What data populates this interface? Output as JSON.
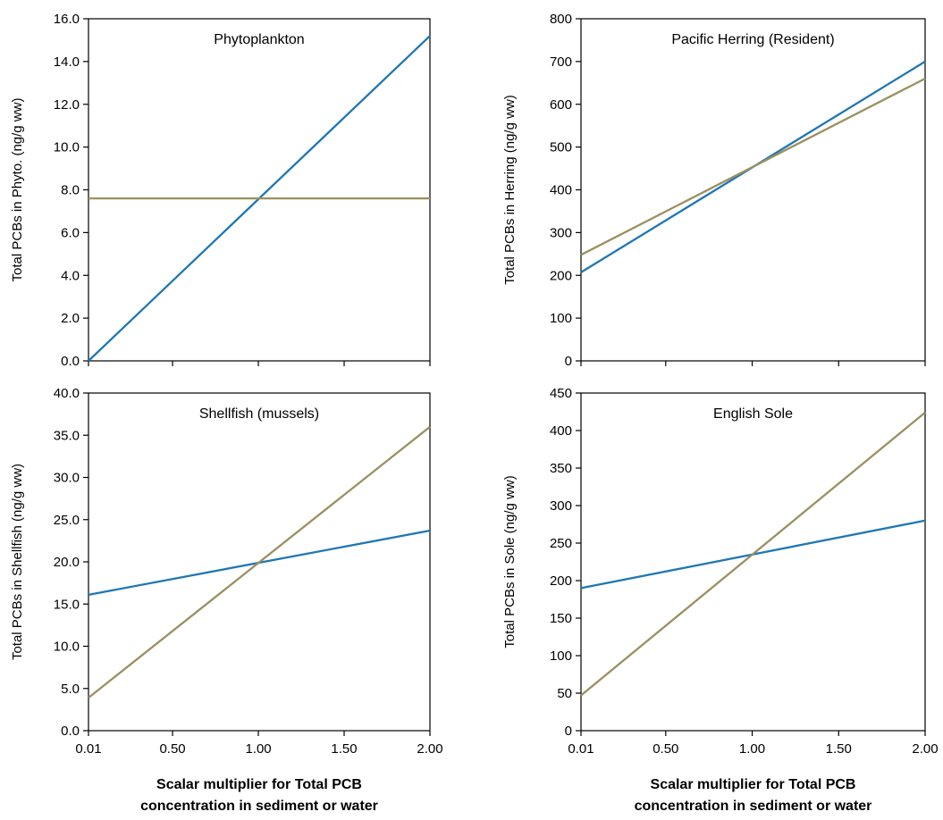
{
  "chart_data": [
    {
      "type": "line",
      "title": "Phytoplankton",
      "ylabel": "Total PCBs in Phyto. (ng/g ww)",
      "xlabel": "",
      "xlim": [
        0.01,
        2.0
      ],
      "ylim": [
        0,
        16
      ],
      "yticks": [
        0,
        2,
        4,
        6,
        8,
        10,
        12,
        14,
        16
      ],
      "ytick_labels": [
        "0.0",
        "2.0",
        "4.0",
        "6.0",
        "8.0",
        "10.0",
        "12.0",
        "14.0",
        "16.0"
      ],
      "xticks": [
        0.01,
        0.5,
        1.0,
        1.5,
        2.0
      ],
      "xtick_labels": [],
      "colors": [
        "#1f77b4",
        "#9b9060"
      ],
      "series": [
        {
          "x": [
            0.01,
            2.0
          ],
          "y": [
            0.0,
            15.2
          ]
        },
        {
          "x": [
            0.01,
            2.0
          ],
          "y": [
            7.6,
            7.6
          ]
        }
      ]
    },
    {
      "type": "line",
      "title": "Pacific Herring (Resident)",
      "ylabel": "Total PCBs in Herring (ng/g ww)",
      "xlabel": "",
      "xlim": [
        0.01,
        2.0
      ],
      "ylim": [
        0,
        800
      ],
      "yticks": [
        0,
        100,
        200,
        300,
        400,
        500,
        600,
        700,
        800
      ],
      "ytick_labels": [
        "0",
        "100",
        "200",
        "300",
        "400",
        "500",
        "600",
        "700",
        "800"
      ],
      "xticks": [
        0.01,
        0.5,
        1.0,
        1.5,
        2.0
      ],
      "xtick_labels": [],
      "colors": [
        "#1f77b4",
        "#9b9060"
      ],
      "series": [
        {
          "x": [
            0.01,
            2.0
          ],
          "y": [
            207,
            700
          ]
        },
        {
          "x": [
            0.01,
            2.0
          ],
          "y": [
            248,
            660
          ]
        }
      ]
    },
    {
      "type": "line",
      "title": "Shellfish (mussels)",
      "ylabel": "Total PCBs in Shellfish (ng/g ww)",
      "xlabel": "Scalar multiplier for Total PCB concentration in sediment or water",
      "xlim": [
        0.01,
        2.0
      ],
      "ylim": [
        0,
        40
      ],
      "yticks": [
        0,
        5,
        10,
        15,
        20,
        25,
        30,
        35,
        40
      ],
      "ytick_labels": [
        "0.0",
        "5.0",
        "10.0",
        "15.0",
        "20.0",
        "25.0",
        "30.0",
        "35.0",
        "40.0"
      ],
      "xticks": [
        0.01,
        0.5,
        1.0,
        1.5,
        2.0
      ],
      "xtick_labels": [
        "0.01",
        "0.50",
        "1.00",
        "1.50",
        "2.00"
      ],
      "colors": [
        "#1f77b4",
        "#9b9060"
      ],
      "series": [
        {
          "x": [
            0.01,
            2.0
          ],
          "y": [
            16.1,
            23.7
          ]
        },
        {
          "x": [
            0.01,
            2.0
          ],
          "y": [
            3.9,
            36.0
          ]
        }
      ]
    },
    {
      "type": "line",
      "title": "English Sole",
      "ylabel": "Total PCBs in Sole (ng/g ww)",
      "xlabel": "Scalar multiplier for Total PCB concentration in sediment or water",
      "xlim": [
        0.01,
        2.0
      ],
      "ylim": [
        0,
        450
      ],
      "yticks": [
        0,
        50,
        100,
        150,
        200,
        250,
        300,
        350,
        400,
        450
      ],
      "ytick_labels": [
        "0",
        "50",
        "100",
        "150",
        "200",
        "250",
        "300",
        "350",
        "400",
        "450"
      ],
      "xticks": [
        0.01,
        0.5,
        1.0,
        1.5,
        2.0
      ],
      "xtick_labels": [
        "0.01",
        "0.50",
        "1.00",
        "1.50",
        "2.00"
      ],
      "colors": [
        "#1f77b4",
        "#9b9060"
      ],
      "series": [
        {
          "x": [
            0.01,
            2.0
          ],
          "y": [
            190,
            280
          ]
        },
        {
          "x": [
            0.01,
            2.0
          ],
          "y": [
            47,
            424
          ]
        }
      ]
    }
  ]
}
